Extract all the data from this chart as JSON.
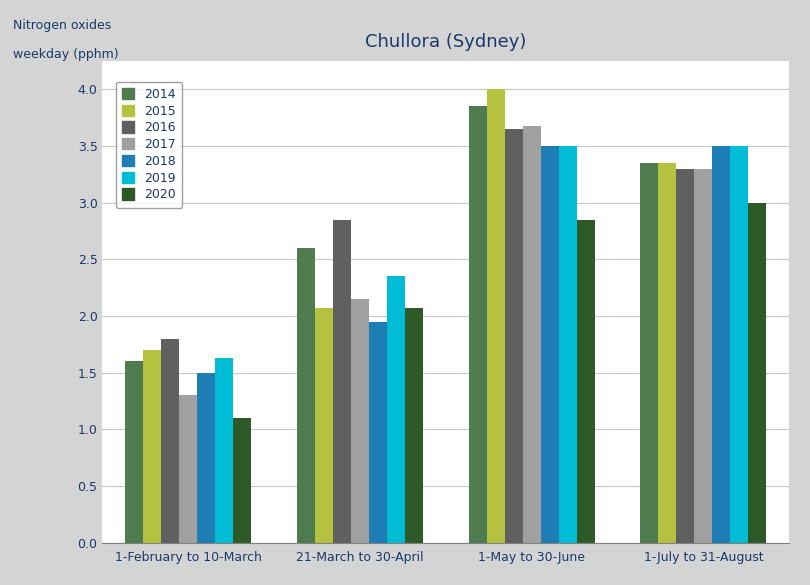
{
  "title": "Chullora (Sydney)",
  "ylabel_line1": "Nitrogen oxides",
  "ylabel_line2": "weekday (pphm)",
  "categories": [
    "1-February to 10-March",
    "21-March to 30-April",
    "1-May to 30-June",
    "1-July to 31-August"
  ],
  "years": [
    "2014",
    "2015",
    "2016",
    "2017",
    "2018",
    "2019",
    "2020"
  ],
  "colors": [
    "#4e7c4e",
    "#b5c240",
    "#606060",
    "#a0a0a0",
    "#1e7db5",
    "#00bcd4",
    "#2d5a27"
  ],
  "values": {
    "2014": [
      1.6,
      2.6,
      3.85,
      3.35
    ],
    "2015": [
      1.7,
      2.07,
      4.0,
      3.35
    ],
    "2016": [
      1.8,
      2.85,
      3.65,
      3.3
    ],
    "2017": [
      1.3,
      2.15,
      3.68,
      3.3
    ],
    "2018": [
      1.5,
      1.95,
      3.5,
      3.5
    ],
    "2019": [
      1.63,
      2.35,
      3.5,
      3.5
    ],
    "2020": [
      1.1,
      2.07,
      2.85,
      3.0
    ]
  },
  "ylim": [
    0,
    4.25
  ],
  "yticks": [
    0.0,
    0.5,
    1.0,
    1.5,
    2.0,
    2.5,
    3.0,
    3.5,
    4.0
  ],
  "background_color": "#ffffff",
  "outer_background": "#d4d4d4",
  "grid_color": "#c8c8c8",
  "text_color": "#1a3a6b",
  "title_fontsize": 13,
  "tick_fontsize": 9,
  "legend_fontsize": 9,
  "ylabel_fontsize": 9
}
